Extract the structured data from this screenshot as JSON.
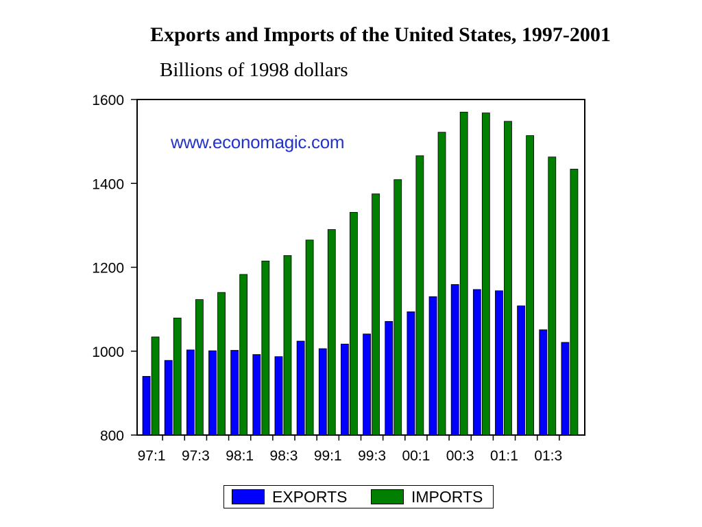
{
  "chart_data": {
    "type": "bar",
    "title": "Exports and Imports of the United States, 1997-2001",
    "subtitle": "Billions of 1998 dollars",
    "watermark": "www.economagic.com",
    "xlabel": "",
    "ylabel": "",
    "ylim": [
      800,
      1600
    ],
    "yticks": [
      800,
      1000,
      1200,
      1400,
      1600
    ],
    "grid": false,
    "legend_position": "bottom",
    "categories": [
      "97:1",
      "97:2",
      "97:3",
      "97:4",
      "98:1",
      "98:2",
      "98:3",
      "98:4",
      "99:1",
      "99:2",
      "99:3",
      "99:4",
      "00:1",
      "00:2",
      "00:3",
      "00:4",
      "01:1",
      "01:2",
      "01:3",
      "01:4"
    ],
    "xtick_labels": [
      "97:1",
      "97:3",
      "98:1",
      "98:3",
      "99:1",
      "99:3",
      "00:1",
      "00:3",
      "01:1",
      "01:3"
    ],
    "series": [
      {
        "name": "EXPORTS",
        "color": "#0000ff",
        "values": [
          940,
          978,
          1003,
          1001,
          1002,
          992,
          987,
          1024,
          1006,
          1017,
          1041,
          1071,
          1094,
          1130,
          1159,
          1147,
          1144,
          1108,
          1051,
          1021
        ]
      },
      {
        "name": "IMPORTS",
        "color": "#007f00",
        "values": [
          1034,
          1079,
          1123,
          1140,
          1183,
          1215,
          1228,
          1265,
          1290,
          1331,
          1375,
          1409,
          1466,
          1522,
          1570,
          1568,
          1548,
          1514,
          1463,
          1434
        ]
      }
    ]
  }
}
